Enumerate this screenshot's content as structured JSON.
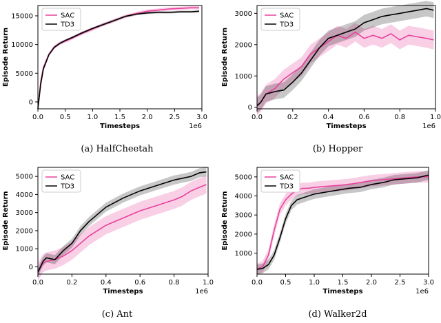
{
  "colors": {
    "SAC": "#e8409b",
    "TD3": "#000000"
  },
  "captions": [
    "(a) HalfCheetah",
    "(b) Hopper",
    "(c) Ant",
    "(d) Walker2d"
  ],
  "chart_data": [
    {
      "type": "line",
      "title": "",
      "xlabel": "Timesteps",
      "ylabel": "Episode Return",
      "x_scale_label": "1e6",
      "xlim": [
        0,
        3.0
      ],
      "ylim": [
        -1200,
        16800
      ],
      "xticks": [
        0.0,
        0.5,
        1.0,
        1.5,
        2.0,
        2.5,
        3.0
      ],
      "xtick_labels": [
        "0.0",
        "0.5",
        "1.0",
        "1.5",
        "2.0",
        "2.5",
        "3.0"
      ],
      "yticks": [
        0,
        5000,
        10000,
        15000
      ],
      "legend": "top-left",
      "grid": false,
      "series": [
        {
          "name": "SAC",
          "x": [
            0.0,
            0.05,
            0.1,
            0.2,
            0.3,
            0.4,
            0.5,
            0.6,
            0.8,
            1.0,
            1.2,
            1.4,
            1.6,
            1.8,
            2.0,
            2.2,
            2.4,
            2.6,
            2.8,
            2.95
          ],
          "y": [
            -1200,
            3500,
            6000,
            8300,
            9600,
            10200,
            10600,
            11000,
            11900,
            12700,
            13500,
            14200,
            14900,
            15400,
            15800,
            16000,
            16200,
            16300,
            16400,
            16400
          ],
          "spread": 300
        },
        {
          "name": "TD3",
          "x": [
            0.0,
            0.05,
            0.1,
            0.2,
            0.3,
            0.4,
            0.5,
            0.6,
            0.8,
            1.0,
            1.2,
            1.4,
            1.6,
            1.8,
            2.0,
            2.2,
            2.4,
            2.6,
            2.8,
            2.95
          ],
          "y": [
            -1200,
            3000,
            5700,
            8200,
            9500,
            10200,
            10700,
            11100,
            12000,
            12800,
            13500,
            14200,
            14900,
            15300,
            15500,
            15600,
            15600,
            15700,
            15700,
            15800
          ],
          "spread": 200
        }
      ]
    },
    {
      "type": "line",
      "title": "",
      "xlabel": "Timesteps",
      "ylabel": "Episode Return",
      "x_scale_label": "1e6",
      "xlim": [
        0,
        1.0
      ],
      "ylim": [
        -50,
        3250
      ],
      "xticks": [
        0.0,
        0.2,
        0.4,
        0.6,
        0.8,
        1.0
      ],
      "xtick_labels": [
        "0.0",
        "0.2",
        "0.4",
        "0.6",
        "0.8",
        "1.0"
      ],
      "yticks": [
        0,
        1000,
        2000,
        3000
      ],
      "legend": "top-left",
      "grid": false,
      "series": [
        {
          "name": "SAC",
          "x": [
            0.0,
            0.02,
            0.05,
            0.1,
            0.15,
            0.2,
            0.25,
            0.3,
            0.35,
            0.4,
            0.45,
            0.5,
            0.55,
            0.6,
            0.65,
            0.7,
            0.75,
            0.8,
            0.85,
            0.9,
            0.95,
            0.99
          ],
          "y": [
            50,
            150,
            420,
            600,
            900,
            1100,
            1300,
            1700,
            1900,
            2100,
            2300,
            2200,
            2400,
            2200,
            2300,
            2200,
            2350,
            2150,
            2300,
            2250,
            2200,
            2150
          ],
          "spread": 300
        },
        {
          "name": "TD3",
          "x": [
            0.0,
            0.02,
            0.05,
            0.1,
            0.15,
            0.2,
            0.25,
            0.3,
            0.35,
            0.4,
            0.45,
            0.5,
            0.55,
            0.6,
            0.65,
            0.7,
            0.75,
            0.8,
            0.85,
            0.9,
            0.95,
            0.99
          ],
          "y": [
            50,
            150,
            420,
            500,
            550,
            800,
            1100,
            1500,
            1900,
            2200,
            2300,
            2400,
            2500,
            2700,
            2800,
            2900,
            2950,
            3000,
            3050,
            3100,
            3150,
            3100
          ],
          "spread": 250
        }
      ]
    },
    {
      "type": "line",
      "title": "",
      "xlabel": "Timesteps",
      "ylabel": "Episode Return",
      "x_scale_label": "1e6",
      "xlim": [
        0,
        1.0
      ],
      "ylim": [
        -400,
        5500
      ],
      "xticks": [
        0.0,
        0.2,
        0.4,
        0.6,
        0.8,
        1.0
      ],
      "xtick_labels": [
        "0.0",
        "0.2",
        "0.4",
        "0.6",
        "0.8",
        "1.0"
      ],
      "yticks": [
        0,
        1000,
        2000,
        3000,
        4000,
        5000
      ],
      "legend": "top-left",
      "grid": false,
      "series": [
        {
          "name": "SAC",
          "x": [
            0.0,
            0.03,
            0.05,
            0.1,
            0.15,
            0.2,
            0.25,
            0.3,
            0.35,
            0.4,
            0.5,
            0.6,
            0.7,
            0.8,
            0.85,
            0.9,
            0.95,
            0.99
          ],
          "y": [
            -300,
            200,
            300,
            400,
            600,
            900,
            1300,
            1700,
            2000,
            2300,
            2700,
            3100,
            3400,
            3700,
            3900,
            4200,
            4400,
            4550
          ],
          "spread": 500
        },
        {
          "name": "TD3",
          "x": [
            0.0,
            0.03,
            0.05,
            0.1,
            0.15,
            0.2,
            0.25,
            0.3,
            0.35,
            0.4,
            0.5,
            0.6,
            0.7,
            0.8,
            0.85,
            0.9,
            0.95,
            0.99
          ],
          "y": [
            -300,
            300,
            500,
            400,
            900,
            1300,
            2000,
            2500,
            2900,
            3300,
            3800,
            4200,
            4500,
            4800,
            4900,
            5000,
            5200,
            5250
          ],
          "spread": 250
        }
      ]
    },
    {
      "type": "line",
      "title": "",
      "xlabel": "Timesteps",
      "ylabel": "Episode Return",
      "x_scale_label": "1e6",
      "xlim": [
        0,
        3.0
      ],
      "ylim": [
        -100,
        5500
      ],
      "xticks": [
        0.0,
        0.5,
        1.0,
        1.5,
        2.0,
        2.5,
        3.0
      ],
      "xtick_labels": [
        "0.0",
        "0.5",
        "1.0",
        "1.5",
        "2.0",
        "2.5",
        "3.0"
      ],
      "yticks": [
        1000,
        2000,
        3000,
        4000,
        5000
      ],
      "legend": "top-left",
      "grid": false,
      "series": [
        {
          "name": "SAC",
          "x": [
            0.0,
            0.1,
            0.2,
            0.3,
            0.4,
            0.5,
            0.6,
            0.7,
            0.8,
            0.9,
            1.0,
            1.2,
            1.4,
            1.6,
            1.8,
            2.0,
            2.2,
            2.4,
            2.6,
            2.8,
            3.0
          ],
          "y": [
            150,
            300,
            900,
            2200,
            3300,
            3800,
            4100,
            4300,
            4400,
            4400,
            4450,
            4500,
            4550,
            4600,
            4700,
            4800,
            4850,
            4900,
            4950,
            5000,
            5000
          ],
          "spread": 300
        },
        {
          "name": "TD3",
          "x": [
            0.0,
            0.1,
            0.2,
            0.3,
            0.4,
            0.5,
            0.6,
            0.7,
            0.8,
            0.9,
            1.0,
            1.2,
            1.4,
            1.6,
            1.8,
            2.0,
            2.2,
            2.4,
            2.6,
            2.8,
            3.0
          ],
          "y": [
            150,
            200,
            400,
            900,
            1800,
            2800,
            3500,
            3800,
            3900,
            4000,
            4100,
            4200,
            4300,
            4400,
            4450,
            4600,
            4700,
            4850,
            4900,
            4950,
            5100
          ],
          "spread": 250
        }
      ]
    }
  ]
}
